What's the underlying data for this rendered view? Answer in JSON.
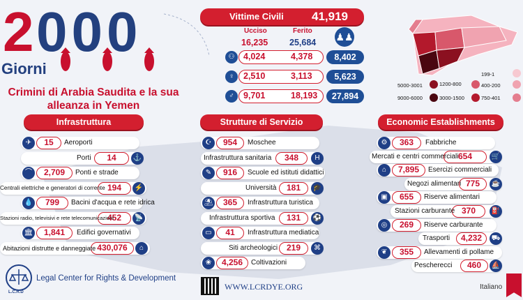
{
  "header": {
    "number": "2000",
    "days": "Giorni",
    "title": "Crimini di Arabia Saudita e la sua alleanza in Yemen"
  },
  "victims": {
    "label": "Vittime Civili",
    "total": "41,919",
    "col_killed": "Ucciso",
    "col_injured": "Ferito",
    "killed_total": "16,235",
    "injured_total": "25,684",
    "rows": [
      {
        "icon": "children-icon",
        "killed": "4,024",
        "injured": "4,378",
        "total": "8,402"
      },
      {
        "icon": "woman-icon",
        "killed": "2,510",
        "injured": "3,113",
        "total": "5,623"
      },
      {
        "icon": "man-icon",
        "killed": "9,701",
        "injured": "18,193",
        "total": "27,894"
      }
    ]
  },
  "map_legend": [
    {
      "label": "199-1",
      "color": "#f7c9d1"
    },
    {
      "label": "1200-800",
      "color": "#d8586b"
    },
    {
      "label": "400-200",
      "color": "#f0a3b0"
    },
    {
      "label": "5000-3001",
      "color": "#8b1020"
    },
    {
      "label": "9000-6000",
      "color": "#4a0710"
    },
    {
      "label": "3000-1500",
      "color": "#b3192c"
    },
    {
      "label": "750-401",
      "color": "#e47d8e"
    }
  ],
  "sections": {
    "infra": "Infrastruttura",
    "services": "Strutture di Servizio",
    "econ": "Economic Establishments"
  },
  "infra": [
    {
      "value": "15",
      "label": "Aeroporti",
      "icon": "airplane-icon"
    },
    {
      "value": "14",
      "label": "Porti",
      "icon": "anchor-icon"
    },
    {
      "value": "2,709",
      "label": "Ponti e strade",
      "icon": "bridge-icon"
    },
    {
      "value": "194",
      "label": "Centrali elettriche e generatori di corrente",
      "icon": "power-plant-icon"
    },
    {
      "value": "799",
      "label": "Bacini d'acqua e rete idrica",
      "icon": "water-tap-icon"
    },
    {
      "value": "452",
      "label": "Stazioni radio, televisivi e rete telecomunicazioni",
      "icon": "antenna-icon"
    },
    {
      "value": "1,841",
      "label": "Edifici governativi",
      "icon": "government-icon"
    },
    {
      "value": "430,076",
      "label": "Abitazioni distrutte e danneggiate",
      "icon": "house-icon"
    }
  ],
  "services": [
    {
      "value": "954",
      "label": "Moschee",
      "icon": "mosque-icon"
    },
    {
      "value": "348",
      "label": "Infrastruttura sanitaria",
      "icon": "hospital-icon"
    },
    {
      "value": "916",
      "label": "Scuole ed istituti didattici",
      "icon": "school-icon"
    },
    {
      "value": "181",
      "label": "Università",
      "icon": "university-icon"
    },
    {
      "value": "365",
      "label": "Infrastruttura turistica",
      "icon": "tourism-icon"
    },
    {
      "value": "131",
      "label": "Infrastruttura sportiva",
      "icon": "sport-icon"
    },
    {
      "value": "41",
      "label": "Infrastruttura mediatica",
      "icon": "tv-icon"
    },
    {
      "value": "219",
      "label": "Siti archeologici",
      "icon": "archaeology-icon"
    },
    {
      "value": "4,256",
      "label": "Coltivazioni",
      "icon": "crops-icon"
    }
  ],
  "econ": [
    {
      "value": "363",
      "label": "Fabbriche",
      "icon": "factory-icon"
    },
    {
      "value": "654",
      "label": "Mercati e centri commerciali",
      "icon": "market-icon"
    },
    {
      "value": "7,895",
      "label": "Esercizi commerciali",
      "icon": "shop-icon"
    },
    {
      "value": "775",
      "label": "Negozi alimentari",
      "icon": "food-store-icon"
    },
    {
      "value": "655",
      "label": "Riserve alimentari",
      "icon": "food-reserve-icon"
    },
    {
      "value": "370",
      "label": "Stazioni carburante",
      "icon": "fuel-icon"
    },
    {
      "value": "269",
      "label": "Riserve carburante",
      "icon": "fuel-tank-icon"
    },
    {
      "value": "4,232",
      "label": "Trasporti",
      "icon": "truck-icon"
    },
    {
      "value": "355",
      "label": "Allevamenti di pollame",
      "icon": "chicken-icon"
    },
    {
      "value": "460",
      "label": "Pescherecci",
      "icon": "boat-icon"
    }
  ],
  "footer": {
    "org": "Legal Center for Rights & Development",
    "url": "WWW.LCRDYE.ORG",
    "language": "Italiano",
    "logo_text": "L.C.R.D"
  }
}
